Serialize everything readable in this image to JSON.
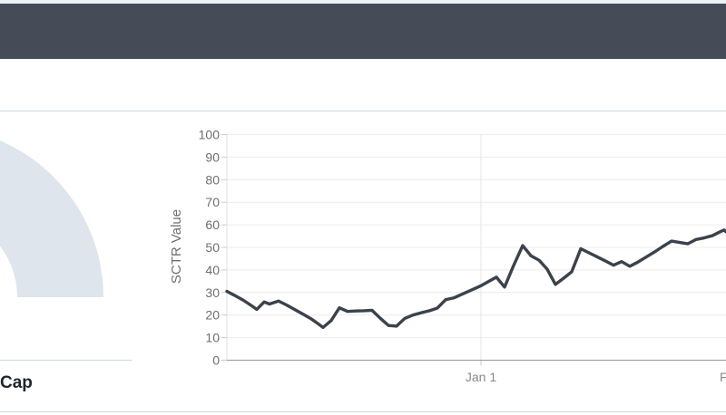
{
  "colors": {
    "header_bar": "#454c58",
    "top_strip": "#eef1f6",
    "divider": "#cdd6e0",
    "gauge_track": "#dee5ec",
    "line": "#3b424b",
    "gridline": "#ececec",
    "axis_line": "#999999",
    "tick_text": "#6e6e6e",
    "x_label_text": "#8a8a8a",
    "title_text": "#20262e"
  },
  "panels": {
    "gauge_title": "Cap"
  },
  "chart_data": {
    "type": "line",
    "title": "",
    "y_axis": {
      "title": "SCTR Value",
      "range": [
        0,
        100
      ],
      "ticks": [
        0,
        10,
        20,
        30,
        40,
        50,
        60,
        70,
        80,
        90,
        100
      ]
    },
    "x_axis": {
      "note": "x values are pixel offsets from plot left edge; daily data, Jan 1 gridline at x=280; next month label clipped at right edge",
      "gridlines_x": [
        280
      ],
      "ticks": [
        {
          "label": "Jan 1",
          "x": 280,
          "anchor": "middle"
        },
        {
          "label": "F",
          "x": 543,
          "anchor": "start"
        }
      ]
    },
    "series": [
      {
        "name": "SCTR",
        "points": [
          [
            0,
            30.5
          ],
          [
            9,
            28.6
          ],
          [
            18,
            26.6
          ],
          [
            27,
            24.2
          ],
          [
            33,
            22.5
          ],
          [
            41,
            25.8
          ],
          [
            47,
            24.9
          ],
          [
            57,
            26.2
          ],
          [
            66,
            24.4
          ],
          [
            75,
            22.4
          ],
          [
            84,
            20.4
          ],
          [
            93,
            18.3
          ],
          [
            101,
            16.0
          ],
          [
            106,
            14.5
          ],
          [
            115,
            17.6
          ],
          [
            124,
            23.2
          ],
          [
            133,
            21.6
          ],
          [
            142,
            21.8
          ],
          [
            151,
            21.9
          ],
          [
            160,
            22.1
          ],
          [
            169,
            18.6
          ],
          [
            178,
            15.4
          ],
          [
            187,
            15.1
          ],
          [
            196,
            18.5
          ],
          [
            205,
            20.0
          ],
          [
            214,
            21.0
          ],
          [
            223,
            21.9
          ],
          [
            232,
            23.1
          ],
          [
            241,
            26.8
          ],
          [
            250,
            27.6
          ],
          [
            260,
            29.4
          ],
          [
            269,
            31.0
          ],
          [
            279,
            32.8
          ],
          [
            288,
            34.8
          ],
          [
            297,
            36.8
          ],
          [
            306,
            32.4
          ],
          [
            316,
            42.0
          ],
          [
            326,
            50.8
          ],
          [
            335,
            46.3
          ],
          [
            344,
            44.3
          ],
          [
            353,
            40.3
          ],
          [
            362,
            33.6
          ],
          [
            371,
            36.3
          ],
          [
            380,
            39.2
          ],
          [
            390,
            49.4
          ],
          [
            399,
            47.6
          ],
          [
            408,
            45.8
          ],
          [
            417,
            44.0
          ],
          [
            426,
            42.1
          ],
          [
            435,
            43.7
          ],
          [
            444,
            41.6
          ],
          [
            453,
            43.5
          ],
          [
            462,
            45.7
          ],
          [
            471,
            47.9
          ],
          [
            480,
            50.3
          ],
          [
            490,
            52.8
          ],
          [
            499,
            52.2
          ],
          [
            508,
            51.6
          ],
          [
            517,
            53.5
          ],
          [
            526,
            54.2
          ],
          [
            535,
            55.2
          ],
          [
            544,
            57.0
          ],
          [
            548,
            57.7
          ],
          [
            550,
            56.9
          ]
        ]
      }
    ]
  }
}
